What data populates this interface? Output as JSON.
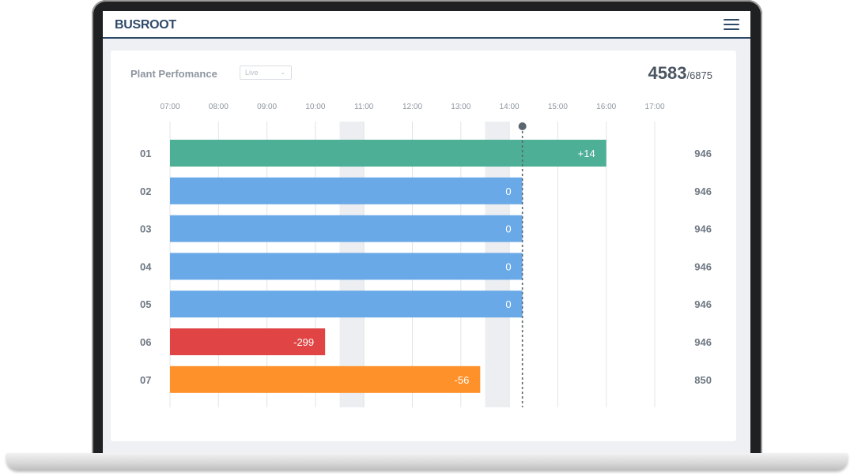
{
  "app": {
    "brand": "BUSROOT"
  },
  "panel": {
    "title": "Plant Perfomance",
    "mode_select": "Live",
    "total_current": "4583",
    "total_target": "/6875"
  },
  "colors": {
    "green": "#4caf96",
    "blue": "#6aa9e8",
    "red": "#e04444",
    "orange": "#ff912a",
    "grid": "#e1e4e8",
    "shade": "#eceef1",
    "now_line": "#5c6670"
  },
  "chart_data": {
    "type": "bar",
    "orientation": "horizontal",
    "time_axis": [
      "07:00",
      "08:00",
      "09:00",
      "10:00",
      "11:00",
      "12:00",
      "13:00",
      "14:00",
      "15:00",
      "16:00",
      "17:00"
    ],
    "x_range_hours": [
      7,
      17
    ],
    "current_time_hour": 14.27,
    "shaded_bands_hours": [
      [
        10.5,
        11.0
      ],
      [
        13.5,
        14.0
      ]
    ],
    "rows": [
      {
        "id": "01",
        "end_hour": 16.0,
        "label": "+14",
        "status": "green",
        "target": "946"
      },
      {
        "id": "02",
        "end_hour": 14.27,
        "label": "0",
        "status": "blue",
        "target": "946"
      },
      {
        "id": "03",
        "end_hour": 14.27,
        "label": "0",
        "status": "blue",
        "target": "946"
      },
      {
        "id": "04",
        "end_hour": 14.27,
        "label": "0",
        "status": "blue",
        "target": "946"
      },
      {
        "id": "05",
        "end_hour": 14.27,
        "label": "0",
        "status": "blue",
        "target": "946"
      },
      {
        "id": "06",
        "end_hour": 10.2,
        "label": "-299",
        "status": "red",
        "target": "946"
      },
      {
        "id": "07",
        "end_hour": 13.4,
        "label": "-56",
        "status": "orange",
        "target": "850"
      }
    ]
  }
}
